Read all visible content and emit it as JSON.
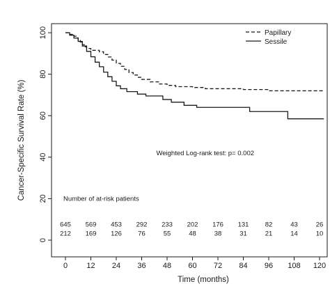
{
  "chart_data": {
    "type": "line",
    "title": "",
    "xlabel": "Time (months)",
    "ylabel": "Cancer-Specific Survival Rate (%)",
    "xlim": [
      0,
      120
    ],
    "ylim": [
      0,
      100
    ],
    "xticks": [
      0,
      12,
      24,
      36,
      48,
      60,
      72,
      84,
      96,
      108,
      120
    ],
    "yticks": [
      0,
      20,
      40,
      60,
      80,
      100
    ],
    "grid": false,
    "legend_position": "top-right",
    "series": [
      {
        "name": "Papillary",
        "line_style": "dashed",
        "color": "#1a1a1a",
        "step_points": [
          [
            0,
            100
          ],
          [
            2,
            99.2
          ],
          [
            4,
            98.3
          ],
          [
            5,
            97.5
          ],
          [
            6,
            96.3
          ],
          [
            7,
            95.5
          ],
          [
            8,
            94.2
          ],
          [
            9,
            93.2
          ],
          [
            10,
            92.4
          ],
          [
            12,
            91.5
          ],
          [
            16,
            90.8
          ],
          [
            18,
            89.5
          ],
          [
            20,
            88.3
          ],
          [
            22,
            86.8
          ],
          [
            24,
            85.2
          ],
          [
            26,
            83.8
          ],
          [
            28,
            82.3
          ],
          [
            30,
            80.8
          ],
          [
            32,
            79.6
          ],
          [
            34,
            78.5
          ],
          [
            36,
            77.5
          ],
          [
            40,
            76.3
          ],
          [
            44,
            75.3
          ],
          [
            48,
            74.6
          ],
          [
            52,
            74.0
          ],
          [
            60,
            73.6
          ],
          [
            66,
            73.0
          ],
          [
            84,
            72.6
          ],
          [
            96,
            72.0
          ],
          [
            122,
            72.0
          ]
        ]
      },
      {
        "name": "Sessile",
        "line_style": "solid",
        "color": "#1a1a1a",
        "step_points": [
          [
            0,
            100
          ],
          [
            2,
            98.8
          ],
          [
            4,
            97.4
          ],
          [
            6,
            95.8
          ],
          [
            8,
            93.6
          ],
          [
            10,
            91.0
          ],
          [
            12,
            88.4
          ],
          [
            14,
            85.8
          ],
          [
            16,
            83.6
          ],
          [
            18,
            81.0
          ],
          [
            20,
            78.8
          ],
          [
            22,
            76.6
          ],
          [
            24,
            74.4
          ],
          [
            26,
            73.0
          ],
          [
            29,
            71.6
          ],
          [
            34,
            70.4
          ],
          [
            38,
            69.5
          ],
          [
            46,
            67.8
          ],
          [
            50,
            66.5
          ],
          [
            56,
            65.0
          ],
          [
            62,
            64.0
          ],
          [
            87,
            62.0
          ],
          [
            105,
            58.5
          ],
          [
            122,
            58.5
          ]
        ]
      }
    ],
    "annotations": [
      {
        "text": "Weighted Log-rank test: p= 0.002",
        "x": 66,
        "y": 41
      }
    ],
    "at_risk": {
      "title": "Number of at-risk patients",
      "times": [
        0,
        12,
        24,
        36,
        48,
        60,
        72,
        84,
        96,
        108,
        120
      ],
      "rows": [
        {
          "name": "Papillary",
          "values": [
            "645",
            "569",
            "453",
            "292",
            "233",
            "202",
            "176",
            "131",
            "82",
            "43",
            "26"
          ]
        },
        {
          "name": "Sessile",
          "values": [
            "212",
            "169",
            "126",
            "76",
            "55",
            "48",
            "38",
            "31",
            "21",
            "14",
            "10"
          ]
        }
      ]
    }
  }
}
